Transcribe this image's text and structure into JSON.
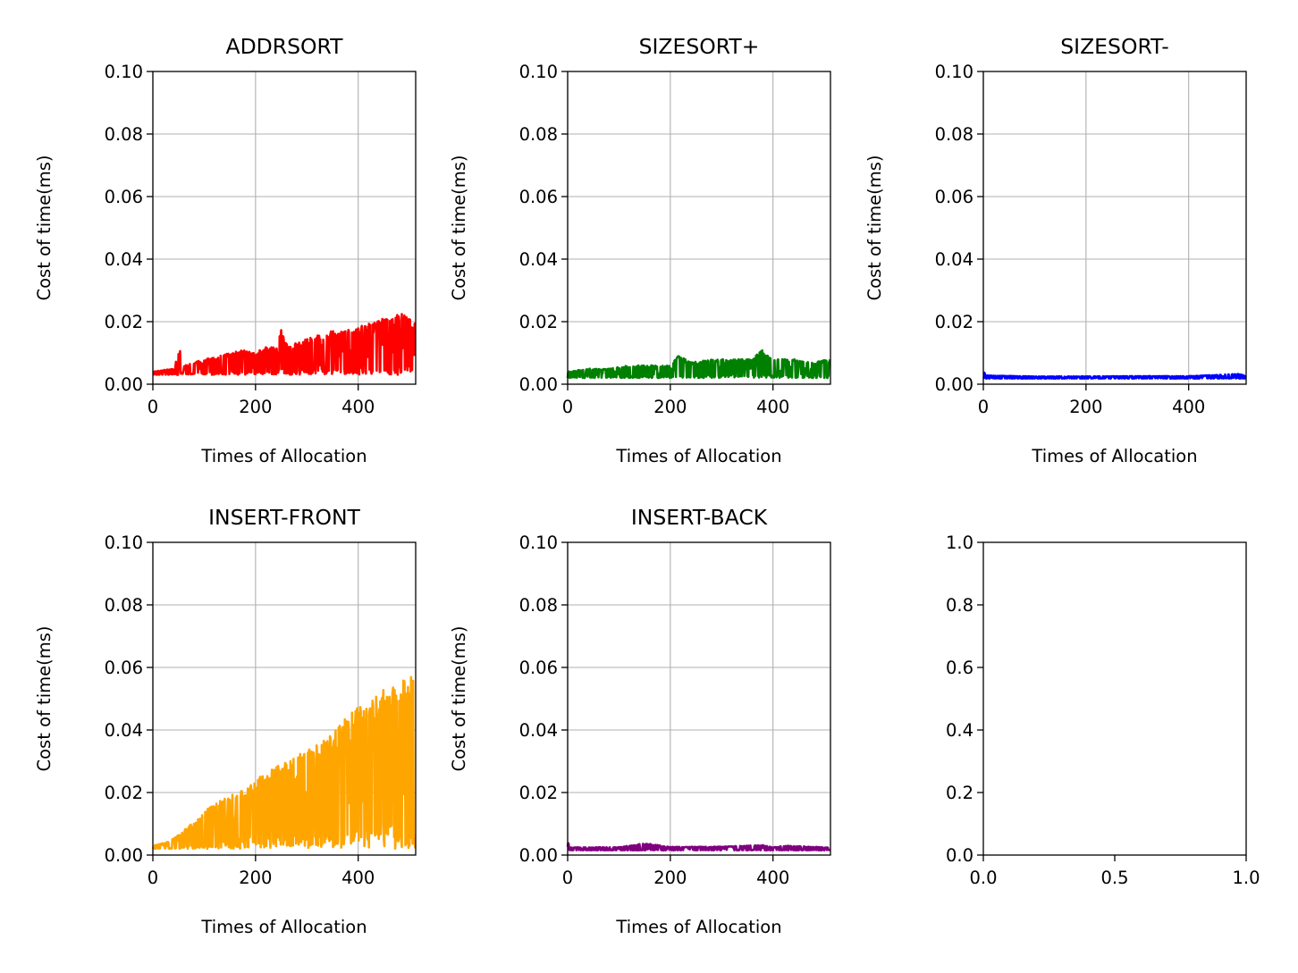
{
  "chart_data": [
    {
      "type": "line",
      "title": "ADDRSORT",
      "xlabel": "Times of Allocation",
      "ylabel": "Cost of time(ms)",
      "xlim": [
        0,
        512
      ],
      "ylim": [
        0,
        0.1
      ],
      "xticks": [
        0,
        200,
        400
      ],
      "xtick_labels": [
        "0",
        "200",
        "400"
      ],
      "yticks": [
        0,
        0.02,
        0.04,
        0.06,
        0.08,
        0.1
      ],
      "ytick_labels": [
        "0.00",
        "0.02",
        "0.04",
        "0.06",
        "0.08",
        "0.10"
      ],
      "grid": true,
      "color": "#ff0000",
      "series": [
        {
          "x": [
            0,
            40,
            55,
            60,
            80,
            100,
            130,
            150,
            180,
            200,
            220,
            240,
            250,
            260,
            290,
            310,
            330,
            350,
            370,
            390,
            410,
            430,
            450,
            470,
            480,
            490,
            500,
            511
          ],
          "y_min": [
            0.003,
            0.003,
            0.003,
            0.003,
            0.003,
            0.003,
            0.003,
            0.003,
            0.003,
            0.003,
            0.003,
            0.003,
            0.003,
            0.003,
            0.003,
            0.003,
            0.003,
            0.003,
            0.003,
            0.003,
            0.003,
            0.003,
            0.003,
            0.003,
            0.003,
            0.003,
            0.003,
            0.003
          ],
          "y_max": [
            0.004,
            0.005,
            0.012,
            0.006,
            0.007,
            0.008,
            0.009,
            0.01,
            0.011,
            0.01,
            0.012,
            0.012,
            0.018,
            0.013,
            0.014,
            0.015,
            0.016,
            0.017,
            0.017,
            0.018,
            0.019,
            0.02,
            0.021,
            0.021,
            0.023,
            0.022,
            0.021,
            0.02
          ]
        }
      ]
    },
    {
      "type": "line",
      "title": "SIZESORT+",
      "xlabel": "Times of Allocation",
      "ylabel": "Cost of time(ms)",
      "xlim": [
        0,
        512
      ],
      "ylim": [
        0,
        0.1
      ],
      "xticks": [
        0,
        200,
        400
      ],
      "xtick_labels": [
        "0",
        "200",
        "400"
      ],
      "yticks": [
        0,
        0.02,
        0.04,
        0.06,
        0.08,
        0.1
      ],
      "ytick_labels": [
        "0.00",
        "0.02",
        "0.04",
        "0.06",
        "0.08",
        "0.10"
      ],
      "grid": true,
      "color": "#008000",
      "series": [
        {
          "x": [
            0,
            40,
            80,
            120,
            160,
            200,
            215,
            240,
            280,
            320,
            360,
            375,
            400,
            440,
            480,
            511
          ],
          "y_min": [
            0.002,
            0.002,
            0.002,
            0.002,
            0.002,
            0.002,
            0.002,
            0.002,
            0.002,
            0.002,
            0.002,
            0.002,
            0.002,
            0.002,
            0.002,
            0.002
          ],
          "y_max": [
            0.004,
            0.005,
            0.005,
            0.006,
            0.006,
            0.006,
            0.0095,
            0.007,
            0.008,
            0.008,
            0.008,
            0.0115,
            0.008,
            0.008,
            0.007,
            0.008
          ]
        }
      ]
    },
    {
      "type": "line",
      "title": "SIZESORT-",
      "xlabel": "Times of Allocation",
      "ylabel": "Cost of time(ms)",
      "xlim": [
        0,
        512
      ],
      "ylim": [
        0,
        0.1
      ],
      "xticks": [
        0,
        200,
        400
      ],
      "xtick_labels": [
        "0",
        "200",
        "400"
      ],
      "yticks": [
        0,
        0.02,
        0.04,
        0.06,
        0.08,
        0.1
      ],
      "ytick_labels": [
        "0.00",
        "0.02",
        "0.04",
        "0.06",
        "0.08",
        "0.10"
      ],
      "grid": true,
      "color": "#0000ff",
      "series": [
        {
          "x": [
            0,
            5,
            100,
            200,
            300,
            400,
            500,
            511
          ],
          "y_min": [
            0.0018,
            0.0018,
            0.0018,
            0.0018,
            0.0018,
            0.0018,
            0.0018,
            0.0018
          ],
          "y_max": [
            0.0045,
            0.0028,
            0.0025,
            0.0025,
            0.0026,
            0.0026,
            0.0033,
            0.0026
          ]
        }
      ]
    },
    {
      "type": "line",
      "title": "INSERT-FRONT",
      "xlabel": "Times of Allocation",
      "ylabel": "Cost of time(ms)",
      "xlim": [
        0,
        512
      ],
      "ylim": [
        0,
        0.1
      ],
      "xticks": [
        0,
        200,
        400
      ],
      "xtick_labels": [
        "0",
        "200",
        "400"
      ],
      "yticks": [
        0,
        0.02,
        0.04,
        0.06,
        0.08,
        0.1
      ],
      "ytick_labels": [
        "0.00",
        "0.02",
        "0.04",
        "0.06",
        "0.08",
        "0.10"
      ],
      "grid": true,
      "color": "#ffa500",
      "series": [
        {
          "x": [
            0,
            25,
            50,
            75,
            90,
            100,
            125,
            150,
            175,
            200,
            225,
            250,
            275,
            300,
            325,
            350,
            365,
            380,
            395,
            410,
            430,
            450,
            470,
            490,
            511
          ],
          "y_min": [
            0.002,
            0.002,
            0.002,
            0.002,
            0.002,
            0.002,
            0.002,
            0.002,
            0.002,
            0.002,
            0.002,
            0.002,
            0.002,
            0.002,
            0.002,
            0.002,
            0.002,
            0.002,
            0.002,
            0.002,
            0.002,
            0.002,
            0.002,
            0.002,
            0.002
          ],
          "y_max": [
            0.003,
            0.004,
            0.0065,
            0.01,
            0.012,
            0.014,
            0.017,
            0.019,
            0.021,
            0.024,
            0.027,
            0.029,
            0.031,
            0.034,
            0.037,
            0.039,
            0.044,
            0.045,
            0.047,
            0.048,
            0.05,
            0.053,
            0.055,
            0.057,
            0.06
          ]
        }
      ]
    },
    {
      "type": "line",
      "title": "INSERT-BACK",
      "xlabel": "Times of Allocation",
      "ylabel": "Cost of time(ms)",
      "xlim": [
        0,
        512
      ],
      "ylim": [
        0,
        0.1
      ],
      "xticks": [
        0,
        200,
        400
      ],
      "xtick_labels": [
        "0",
        "200",
        "400"
      ],
      "yticks": [
        0,
        0.02,
        0.04,
        0.06,
        0.08,
        0.1
      ],
      "ytick_labels": [
        "0.00",
        "0.02",
        "0.04",
        "0.06",
        "0.08",
        "0.10"
      ],
      "grid": true,
      "color": "#800080",
      "series": [
        {
          "x": [
            0,
            5,
            100,
            150,
            200,
            300,
            380,
            400,
            425,
            500,
            511
          ],
          "y_min": [
            0.0015,
            0.0015,
            0.0015,
            0.0015,
            0.0015,
            0.0015,
            0.0015,
            0.0015,
            0.0015,
            0.0015,
            0.0015
          ],
          "y_max": [
            0.0045,
            0.0025,
            0.0025,
            0.0038,
            0.0026,
            0.0027,
            0.0032,
            0.0025,
            0.003,
            0.0025,
            0.0024
          ]
        }
      ]
    },
    {
      "type": "line",
      "title": "",
      "xlabel": "",
      "ylabel": "",
      "xlim": [
        0,
        1
      ],
      "ylim": [
        0,
        1
      ],
      "xticks": [
        0,
        0.5,
        1
      ],
      "xtick_labels": [
        "0.0",
        "0.5",
        "1.0"
      ],
      "yticks": [
        0,
        0.2,
        0.4,
        0.6,
        0.8,
        1
      ],
      "ytick_labels": [
        "0.0",
        "0.2",
        "0.4",
        "0.6",
        "0.8",
        "1.0"
      ],
      "grid": false,
      "color": "#000000",
      "series": []
    }
  ]
}
